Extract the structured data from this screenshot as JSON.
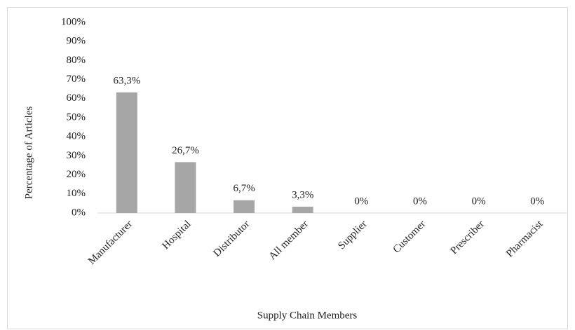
{
  "chart_data": {
    "type": "bar",
    "x_label": "Supply Chain Members",
    "y_label": "Percentage  of Articles",
    "categories": [
      "Manufacturer",
      "Hospital",
      "Distributor",
      "All member",
      "Supplier",
      "Customer",
      "Prescriber",
      "Pharmacist"
    ],
    "values": [
      63.3,
      26.7,
      6.7,
      3.3,
      0,
      0,
      0,
      0
    ],
    "value_labels": [
      "63,3%",
      "26,7%",
      "6,7%",
      "3,3%",
      "0%",
      "0%",
      "0%",
      "0%"
    ],
    "color": "#a6a6a6",
    "ylim": [
      0,
      100
    ],
    "yticks": [
      {
        "value": 0,
        "label": "0%"
      },
      {
        "value": 10,
        "label": "10%"
      },
      {
        "value": 20,
        "label": "20%"
      },
      {
        "value": 30,
        "label": "30%"
      },
      {
        "value": 40,
        "label": "40%"
      },
      {
        "value": 50,
        "label": "50%"
      },
      {
        "value": 60,
        "label": "60%"
      },
      {
        "value": 70,
        "label": "70%"
      },
      {
        "value": 80,
        "label": "80%"
      },
      {
        "value": 90,
        "label": "90%"
      },
      {
        "value": 100,
        "label": "100%"
      }
    ],
    "grid": false
  }
}
